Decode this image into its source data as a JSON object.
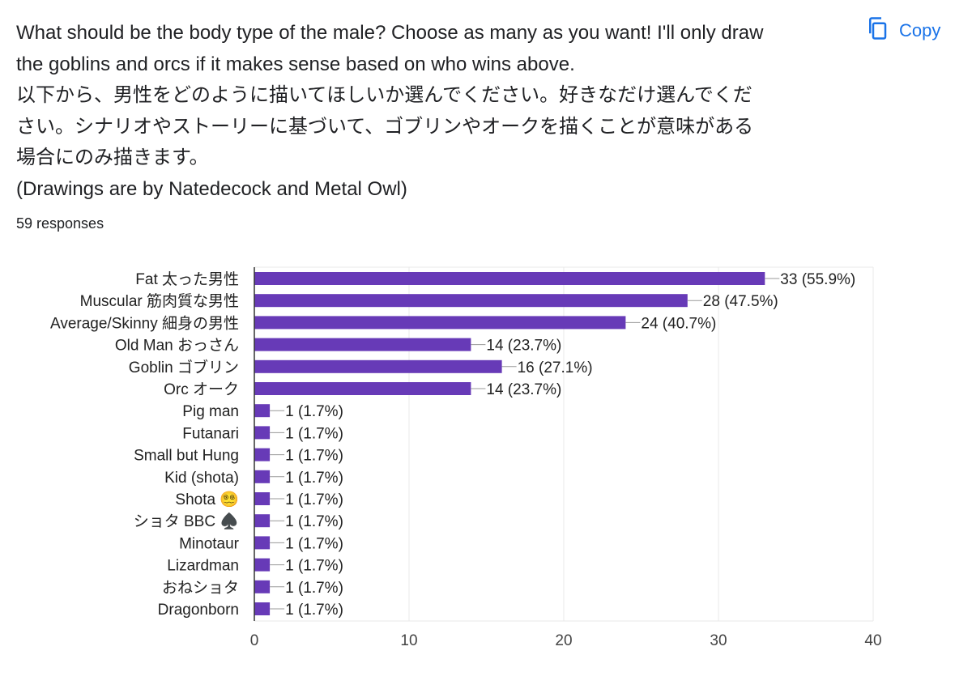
{
  "question": {
    "lines": [
      "What should be the body type of the male? Choose as many as you want! I'll only draw",
      "the goblins and orcs if it makes sense based on who wins above.",
      "以下から、男性をどのように描いてほしいか選んでください。好きなだけ選んでくだ",
      "さい。シナリオやストーリーに基づいて、ゴブリンやオークを描くことが意味がある",
      "場合にのみ描きます。",
      "(Drawings are by Natedecock and Metal Owl)"
    ],
    "responses": "59 responses"
  },
  "copy_button": {
    "label": "Copy",
    "icon": "copy-icon"
  },
  "colors": {
    "bar": "#673ab7",
    "accent": "#1a73e8",
    "grid": "#e8e8e8",
    "axis": "#333333"
  },
  "chart_data": {
    "type": "bar",
    "orientation": "horizontal",
    "categories": [
      "Fat 太った男性",
      "Muscular 筋肉質な男性",
      "Average/Skinny 細身の男性",
      "Old Man おっさん",
      "Goblin ゴブリン",
      "Orc オーク",
      "Pig man",
      "Futanari",
      "Small but Hung",
      "Kid (shota)",
      "Shota 😵‍💫",
      "ショタ BBC ♠️",
      "Minotaur",
      "Lizardman",
      "おねショタ",
      "Dragonborn"
    ],
    "values": [
      33,
      28,
      24,
      14,
      16,
      14,
      1,
      1,
      1,
      1,
      1,
      1,
      1,
      1,
      1,
      1
    ],
    "value_labels": [
      "33 (55.9%)",
      "28 (47.5%)",
      "24 (40.7%)",
      "14 (23.7%)",
      "16 (27.1%)",
      "14 (23.7%)",
      "1 (1.7%)",
      "1 (1.7%)",
      "1 (1.7%)",
      "1 (1.7%)",
      "1 (1.7%)",
      "1 (1.7%)",
      "1 (1.7%)",
      "1 (1.7%)",
      "1 (1.7%)",
      "1 (1.7%)"
    ],
    "xlim": [
      0,
      40
    ],
    "xticks": [
      0,
      10,
      20,
      30,
      40
    ],
    "grid": true,
    "legend": "none",
    "title": "",
    "xlabel": "",
    "ylabel": ""
  }
}
